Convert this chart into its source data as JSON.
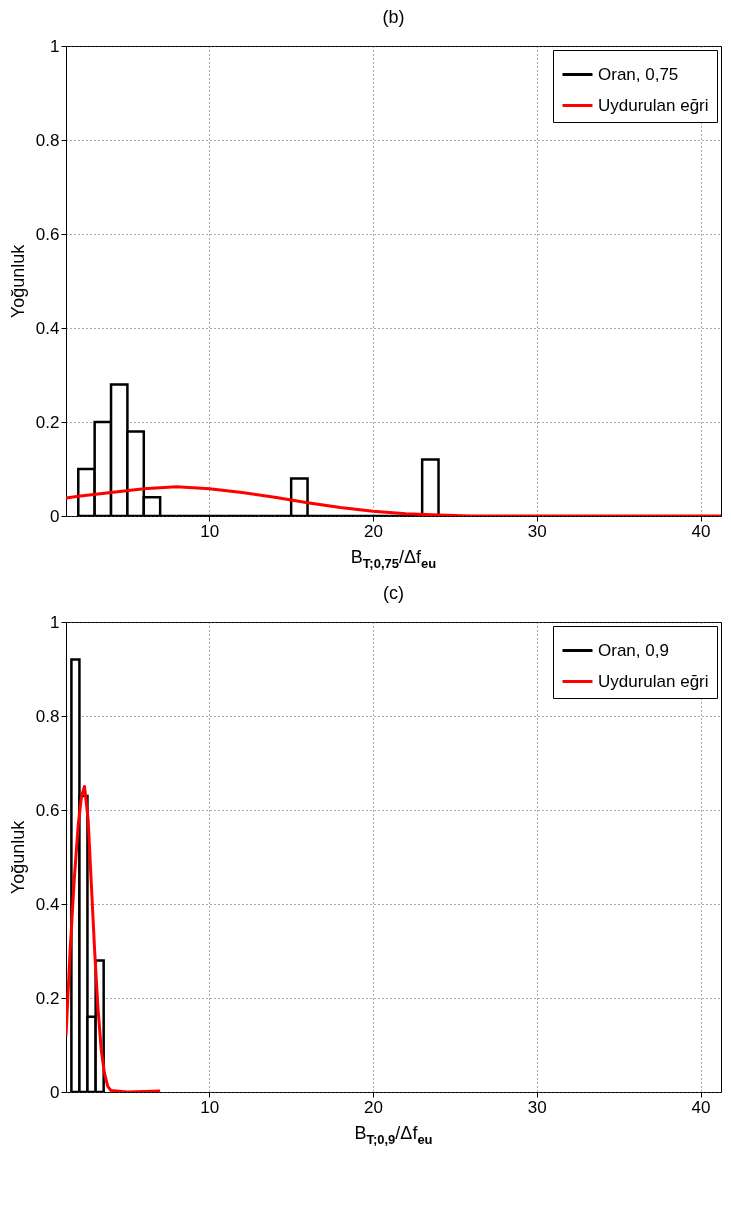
{
  "chart_data": [
    {
      "type": "histogram",
      "title": "(b)",
      "xlabel": "B$_{T;0,75}$/Δf$_{eu}$",
      "ylabel": "Yoğunluk",
      "xlim": [
        1.25,
        41.25
      ],
      "xticks": [
        10,
        20,
        30,
        40
      ],
      "ylim": [
        0,
        1
      ],
      "yticks": [
        0,
        0.2,
        0.4,
        0.6,
        0.8,
        1
      ],
      "grid": true,
      "legend": "top right",
      "series": [
        {
          "name": "Oran, 0,75",
          "type": "histogram",
          "color": "#000000",
          "bins": [
            2,
            3,
            4,
            5,
            6,
            7,
            8,
            9,
            10,
            11,
            12,
            13,
            14,
            15,
            16,
            17,
            18,
            19,
            20,
            21,
            22,
            23,
            24
          ],
          "values": [
            0.1,
            0.2,
            0.28,
            0.18,
            0.04,
            0,
            0,
            0,
            0,
            0,
            0,
            0,
            0,
            0.08,
            0,
            0,
            0,
            0,
            0,
            0,
            0,
            0.12
          ]
        },
        {
          "name": "Uydurulan eğri",
          "type": "line",
          "color": "#ff0000",
          "x": [
            1.25,
            2,
            4,
            6,
            8,
            10,
            12,
            14,
            16,
            18,
            20,
            22,
            24,
            26,
            30,
            41.25
          ],
          "values": [
            0.038,
            0.042,
            0.05,
            0.058,
            0.062,
            0.058,
            0.05,
            0.04,
            0.028,
            0.018,
            0.01,
            0.005,
            0.002,
            0,
            0,
            0
          ]
        }
      ]
    },
    {
      "type": "histogram",
      "title": "(c)",
      "xlabel": "B$_{T;0,9}$/Δf$_{eu}$",
      "ylabel": "Yoğunluk",
      "xlim": [
        1.25,
        41.25
      ],
      "xticks": [
        10,
        20,
        30,
        40
      ],
      "ylim": [
        0,
        1
      ],
      "yticks": [
        0,
        0.2,
        0.4,
        0.6,
        0.8,
        1
      ],
      "grid": true,
      "legend": "top right",
      "series": [
        {
          "name": "Oran, 0,9",
          "type": "histogram",
          "color": "#000000",
          "bins": [
            1.58,
            2.07,
            2.56,
            3.06,
            3.55
          ],
          "values": [
            0.92,
            0.63,
            0.16,
            0.28
          ]
        },
        {
          "name": "Uydurulan eğri",
          "type": "line",
          "color": "#ff0000",
          "x": [
            1.25,
            1.5,
            1.75,
            2,
            2.2,
            2.38,
            2.6,
            2.8,
            3,
            3.2,
            3.4,
            3.6,
            3.8,
            4,
            5,
            7
          ],
          "values": [
            0.12,
            0.3,
            0.45,
            0.57,
            0.63,
            0.65,
            0.58,
            0.44,
            0.3,
            0.18,
            0.09,
            0.04,
            0.012,
            0.003,
            0,
            0.002
          ]
        }
      ]
    }
  ]
}
